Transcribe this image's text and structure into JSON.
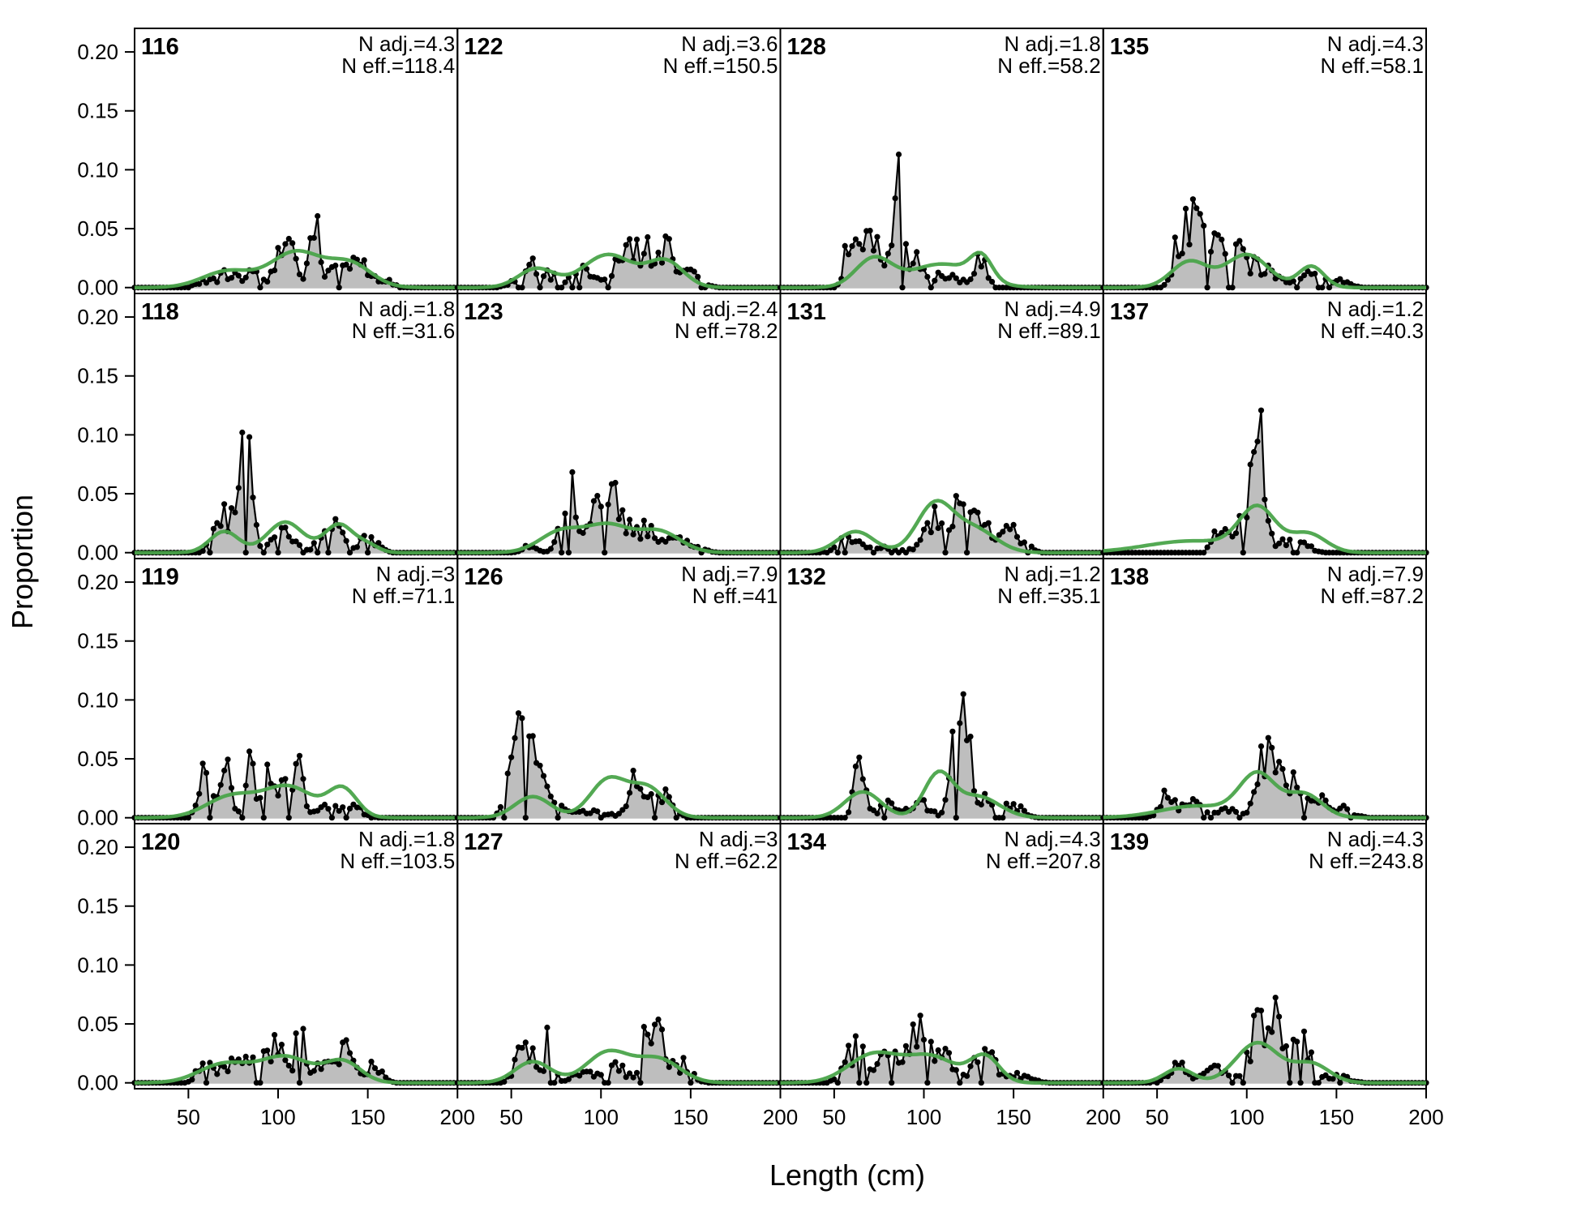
{
  "chart_data": {
    "type": "area",
    "xlabel": "Length (cm)",
    "ylabel": "Proportion",
    "xlim": [
      20,
      200
    ],
    "ylim": [
      -0.005,
      0.22
    ],
    "x_ticks": [
      50,
      100,
      150,
      200
    ],
    "x_tick_labels": [
      "50",
      "100",
      "150",
      "200"
    ],
    "y_ticks": [
      0,
      0.05,
      0.1,
      0.15,
      0.2
    ],
    "y_tick_labels": [
      "0.00",
      "0.05",
      "0.10",
      "0.15",
      "0.20"
    ],
    "grid": false,
    "legend": "none",
    "layout": {
      "rows": 4,
      "cols": 4,
      "order": "column-major"
    },
    "colors": {
      "observed_fill": "#bebebe",
      "observed_line": "#000000",
      "expected_line": "#4aa44a",
      "zero_line": "#bebebe"
    },
    "bin_width_cm": 2,
    "panels": [
      {
        "label": "116",
        "n_adj": "N adj.=4.3",
        "n_eff": "N eff.=118.4",
        "obs_peaks": [
          [
            58,
            0.004,
            4
          ],
          [
            72,
            0.012,
            6
          ],
          [
            86,
            0.01,
            5
          ],
          [
            104,
            0.036,
            5
          ],
          [
            120,
            0.062,
            3
          ],
          [
            134,
            0.035,
            4
          ],
          [
            146,
            0.024,
            5
          ],
          [
            160,
            0.005,
            4
          ]
        ],
        "exp_peaks": [
          [
            72,
            0.014,
            14
          ],
          [
            110,
            0.03,
            14
          ],
          [
            140,
            0.02,
            12
          ]
        ]
      },
      {
        "label": "118",
        "n_adj": "N adj.=1.8",
        "n_eff": "N eff.=31.6",
        "obs_peaks": [
          [
            68,
            0.035,
            4
          ],
          [
            78,
            0.07,
            3
          ],
          [
            84,
            0.11,
            2
          ],
          [
            102,
            0.02,
            6
          ],
          [
            130,
            0.022,
            6
          ],
          [
            150,
            0.012,
            5
          ]
        ],
        "exp_peaks": [
          [
            70,
            0.018,
            8
          ],
          [
            104,
            0.026,
            10
          ],
          [
            134,
            0.024,
            8
          ],
          [
            150,
            0.006,
            6
          ]
        ]
      },
      {
        "label": "119",
        "n_adj": "N adj.=3",
        "n_eff": "N eff.=71.1",
        "obs_peaks": [
          [
            58,
            0.035,
            3
          ],
          [
            70,
            0.04,
            4
          ],
          [
            84,
            0.06,
            2
          ],
          [
            94,
            0.055,
            3
          ],
          [
            104,
            0.05,
            3
          ],
          [
            112,
            0.04,
            3
          ],
          [
            128,
            0.012,
            5
          ],
          [
            142,
            0.01,
            5
          ]
        ],
        "exp_peaks": [
          [
            74,
            0.018,
            14
          ],
          [
            106,
            0.026,
            14
          ],
          [
            136,
            0.024,
            8
          ]
        ]
      },
      {
        "label": "120",
        "n_adj": "N adj.=1.8",
        "n_eff": "N eff.=103.5",
        "obs_peaks": [
          [
            60,
            0.022,
            4
          ],
          [
            76,
            0.018,
            6
          ],
          [
            92,
            0.022,
            6
          ],
          [
            102,
            0.026,
            4
          ],
          [
            112,
            0.07,
            2
          ],
          [
            126,
            0.02,
            5
          ],
          [
            138,
            0.03,
            4
          ],
          [
            154,
            0.015,
            4
          ]
        ],
        "exp_peaks": [
          [
            70,
            0.016,
            14
          ],
          [
            104,
            0.022,
            14
          ],
          [
            136,
            0.018,
            10
          ]
        ]
      },
      {
        "label": "122",
        "n_adj": "N adj.=3.6",
        "n_eff": "N eff.=150.5",
        "obs_peaks": [
          [
            64,
            0.018,
            8
          ],
          [
            90,
            0.016,
            6
          ],
          [
            112,
            0.03,
            5
          ],
          [
            124,
            0.03,
            5
          ],
          [
            136,
            0.034,
            4
          ],
          [
            150,
            0.012,
            6
          ]
        ],
        "exp_peaks": [
          [
            64,
            0.016,
            10
          ],
          [
            104,
            0.028,
            14
          ],
          [
            136,
            0.022,
            10
          ]
        ]
      },
      {
        "label": "123",
        "n_adj": "N adj.=2.4",
        "n_eff": "N eff.=78.2",
        "obs_peaks": [
          [
            60,
            0.005,
            4
          ],
          [
            82,
            0.055,
            4
          ],
          [
            98,
            0.05,
            4
          ],
          [
            108,
            0.04,
            5
          ],
          [
            124,
            0.02,
            6
          ],
          [
            144,
            0.01,
            8
          ]
        ],
        "exp_peaks": [
          [
            78,
            0.018,
            12
          ],
          [
            104,
            0.022,
            12
          ],
          [
            132,
            0.018,
            12
          ]
        ]
      },
      {
        "label": "126",
        "n_adj": "N adj.=7.9",
        "n_eff": "N eff.=41",
        "obs_peaks": [
          [
            52,
            0.06,
            4
          ],
          [
            62,
            0.045,
            5
          ],
          [
            74,
            0.008,
            6
          ],
          [
            96,
            0.006,
            8
          ],
          [
            120,
            0.03,
            4
          ],
          [
            132,
            0.022,
            6
          ]
        ],
        "exp_peaks": [
          [
            62,
            0.018,
            10
          ],
          [
            104,
            0.032,
            10
          ],
          [
            126,
            0.025,
            10
          ]
        ]
      },
      {
        "label": "127",
        "n_adj": "N adj.=3",
        "n_eff": "N eff.=62.2",
        "obs_peaks": [
          [
            58,
            0.03,
            5
          ],
          [
            72,
            0.08,
            2
          ],
          [
            90,
            0.01,
            6
          ],
          [
            108,
            0.014,
            6
          ],
          [
            124,
            0.068,
            2
          ],
          [
            132,
            0.045,
            4
          ],
          [
            146,
            0.015,
            5
          ]
        ],
        "exp_peaks": [
          [
            62,
            0.018,
            10
          ],
          [
            104,
            0.026,
            12
          ],
          [
            132,
            0.02,
            12
          ]
        ]
      },
      {
        "label": "128",
        "n_adj": "N adj.=1.8",
        "n_eff": "N eff.=58.2",
        "obs_peaks": [
          [
            58,
            0.03,
            3
          ],
          [
            66,
            0.04,
            4
          ],
          [
            76,
            0.035,
            4
          ],
          [
            86,
            0.075,
            3
          ],
          [
            96,
            0.02,
            5
          ],
          [
            112,
            0.01,
            8
          ],
          [
            132,
            0.025,
            3
          ]
        ],
        "exp_peaks": [
          [
            72,
            0.024,
            10
          ],
          [
            110,
            0.02,
            18
          ],
          [
            132,
            0.02,
            6
          ]
        ]
      },
      {
        "label": "131",
        "n_adj": "N adj.=4.9",
        "n_eff": "N eff.=89.1",
        "obs_peaks": [
          [
            58,
            0.012,
            6
          ],
          [
            76,
            0.006,
            8
          ],
          [
            104,
            0.03,
            5
          ],
          [
            120,
            0.048,
            5
          ],
          [
            134,
            0.024,
            6
          ],
          [
            150,
            0.016,
            6
          ]
        ],
        "exp_peaks": [
          [
            62,
            0.018,
            10
          ],
          [
            106,
            0.04,
            10
          ],
          [
            128,
            0.02,
            12
          ]
        ]
      },
      {
        "label": "132",
        "n_adj": "N adj.=1.2",
        "n_eff": "N eff.=35.1",
        "obs_peaks": [
          [
            64,
            0.04,
            3
          ],
          [
            80,
            0.01,
            6
          ],
          [
            98,
            0.012,
            6
          ],
          [
            118,
            0.075,
            3
          ],
          [
            124,
            0.06,
            3
          ],
          [
            136,
            0.02,
            5
          ],
          [
            150,
            0.01,
            5
          ]
        ],
        "exp_peaks": [
          [
            66,
            0.022,
            10
          ],
          [
            108,
            0.036,
            8
          ],
          [
            130,
            0.018,
            12
          ]
        ]
      },
      {
        "label": "134",
        "n_adj": "N adj.=4.3",
        "n_eff": "N eff.=207.8",
        "obs_peaks": [
          [
            62,
            0.028,
            6
          ],
          [
            80,
            0.022,
            6
          ],
          [
            96,
            0.04,
            6
          ],
          [
            112,
            0.02,
            6
          ],
          [
            134,
            0.024,
            6
          ],
          [
            154,
            0.006,
            6
          ]
        ],
        "exp_peaks": [
          [
            72,
            0.024,
            14
          ],
          [
            104,
            0.022,
            14
          ],
          [
            134,
            0.022,
            8
          ]
        ]
      },
      {
        "label": "135",
        "n_adj": "N adj.=4.3",
        "n_eff": "N eff.=58.1",
        "obs_peaks": [
          [
            64,
            0.05,
            4
          ],
          [
            72,
            0.07,
            3
          ],
          [
            82,
            0.03,
            5
          ],
          [
            96,
            0.028,
            6
          ],
          [
            112,
            0.016,
            6
          ],
          [
            134,
            0.01,
            6
          ],
          [
            150,
            0.006,
            6
          ]
        ],
        "exp_peaks": [
          [
            68,
            0.022,
            10
          ],
          [
            100,
            0.028,
            12
          ],
          [
            136,
            0.018,
            7
          ]
        ]
      },
      {
        "label": "137",
        "n_adj": "N adj.=1.2",
        "n_eff": "N eff.=40.3",
        "obs_peaks": [
          [
            86,
            0.025,
            4
          ],
          [
            96,
            0.018,
            4
          ],
          [
            106,
            0.1,
            4
          ],
          [
            122,
            0.01,
            4
          ],
          [
            132,
            0.008,
            4
          ]
        ],
        "exp_peaks": [
          [
            70,
            0.01,
            26
          ],
          [
            106,
            0.036,
            10
          ],
          [
            134,
            0.016,
            10
          ]
        ]
      },
      {
        "label": "138",
        "n_adj": "N adj.=7.9",
        "n_eff": "N eff.=87.2",
        "obs_peaks": [
          [
            56,
            0.024,
            4
          ],
          [
            70,
            0.012,
            5
          ],
          [
            90,
            0.006,
            8
          ],
          [
            110,
            0.06,
            4
          ],
          [
            122,
            0.035,
            5
          ],
          [
            136,
            0.02,
            6
          ],
          [
            152,
            0.008,
            6
          ]
        ],
        "exp_peaks": [
          [
            72,
            0.01,
            20
          ],
          [
            106,
            0.036,
            10
          ],
          [
            132,
            0.02,
            10
          ]
        ]
      },
      {
        "label": "139",
        "n_adj": "N adj.=4.3",
        "n_eff": "N eff.=243.8",
        "obs_peaks": [
          [
            62,
            0.014,
            6
          ],
          [
            84,
            0.012,
            6
          ],
          [
            106,
            0.044,
            5
          ],
          [
            118,
            0.048,
            5
          ],
          [
            132,
            0.03,
            5
          ],
          [
            150,
            0.006,
            6
          ]
        ],
        "exp_peaks": [
          [
            62,
            0.012,
            8
          ],
          [
            106,
            0.034,
            12
          ],
          [
            136,
            0.016,
            10
          ]
        ]
      }
    ]
  }
}
